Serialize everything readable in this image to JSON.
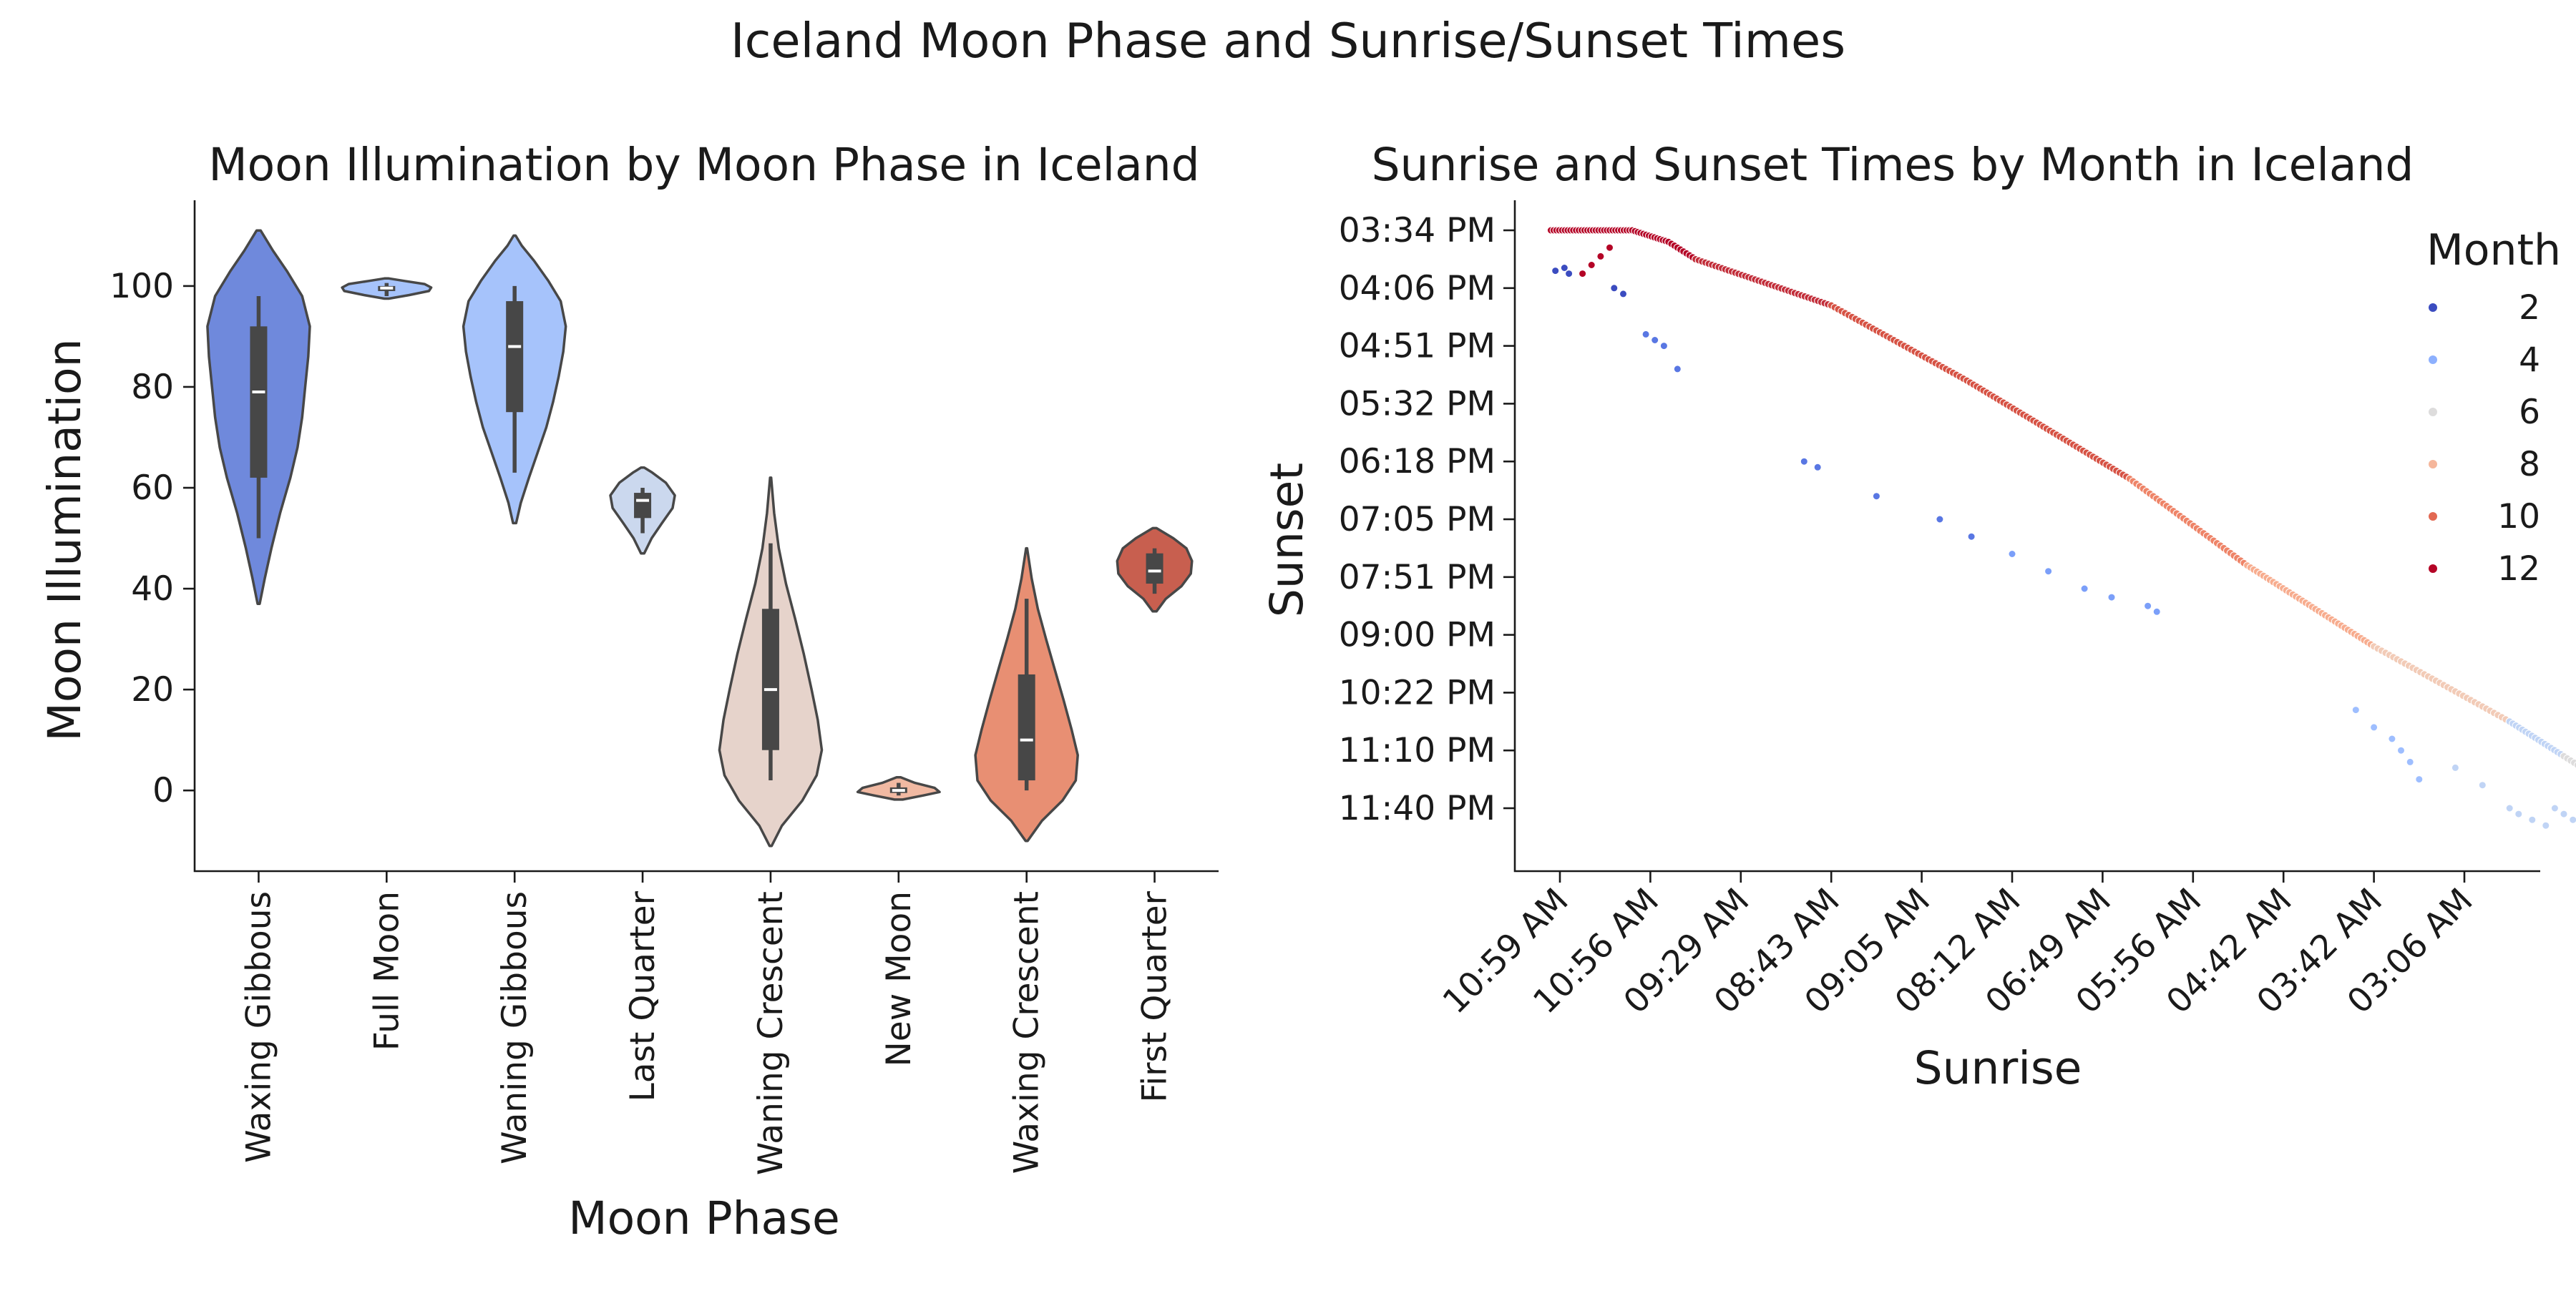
{
  "figure": {
    "title": "Iceland Moon Phase and Sunrise/Sunset Times"
  },
  "chart_data": [
    {
      "type": "violin",
      "title": "Moon Illumination by Moon Phase in Iceland",
      "xlabel": "Moon Phase",
      "ylabel": "Moon Illumination",
      "ylim": [
        -16,
        117
      ],
      "yticks": [
        0,
        20,
        40,
        60,
        80,
        100
      ],
      "categories": [
        "Waxing Gibbous",
        "Full Moon",
        "Waning Gibbous",
        "Last Quarter",
        "Waning Crescent",
        "New Moon",
        "Waxing Crescent",
        "First Quarter"
      ],
      "colors": [
        "#6f89dc",
        "#a6c3fb",
        "#a6c3fb",
        "#cbd8ee",
        "#e6d3cb",
        "#f1b9a2",
        "#e88f73",
        "#c85f4f"
      ],
      "violins": [
        {
          "category": "Waxing Gibbous",
          "min": 50,
          "q1": 62,
          "median": 79,
          "q3": 92,
          "max": 98,
          "kde_min": 37,
          "kde_max": 111,
          "profile": [
            [
              37,
              0.02
            ],
            [
              42,
              0.12
            ],
            [
              48,
              0.25
            ],
            [
              55,
              0.42
            ],
            [
              62,
              0.62
            ],
            [
              68,
              0.76
            ],
            [
              74,
              0.85
            ],
            [
              80,
              0.91
            ],
            [
              86,
              0.97
            ],
            [
              92,
              1.0
            ],
            [
              98,
              0.85
            ],
            [
              103,
              0.55
            ],
            [
              107,
              0.28
            ],
            [
              111,
              0.04
            ]
          ]
        },
        {
          "category": "Full Moon",
          "min": 98,
          "q1": 99,
          "median": 99.6,
          "q3": 100,
          "max": 100.6,
          "kde_min": 97.5,
          "kde_max": 101.5,
          "width_scale": 0.87,
          "profile": [
            [
              97.5,
              0.05
            ],
            [
              98.2,
              0.5
            ],
            [
              99,
              0.95
            ],
            [
              99.7,
              1.0
            ],
            [
              100.4,
              0.85
            ],
            [
              101,
              0.4
            ],
            [
              101.5,
              0.05
            ]
          ]
        },
        {
          "category": "Waning Gibbous",
          "min": 63,
          "q1": 75,
          "median": 88,
          "q3": 97,
          "max": 100,
          "kde_min": 53,
          "kde_max": 110,
          "profile": [
            [
              53,
              0.03
            ],
            [
              57,
              0.12
            ],
            [
              62,
              0.28
            ],
            [
              67,
              0.45
            ],
            [
              72,
              0.62
            ],
            [
              77,
              0.75
            ],
            [
              82,
              0.86
            ],
            [
              87,
              0.95
            ],
            [
              92,
              1.0
            ],
            [
              97,
              0.9
            ],
            [
              101,
              0.66
            ],
            [
              105,
              0.38
            ],
            [
              108,
              0.14
            ],
            [
              110,
              0.02
            ]
          ]
        },
        {
          "category": "Last Quarter",
          "min": 51,
          "q1": 54,
          "median": 57.5,
          "q3": 59,
          "max": 60,
          "kde_min": 47,
          "kde_max": 64,
          "width_scale": 0.63,
          "profile": [
            [
              47,
              0.05
            ],
            [
              50,
              0.28
            ],
            [
              53,
              0.6
            ],
            [
              56,
              0.93
            ],
            [
              58.5,
              1.0
            ],
            [
              61,
              0.72
            ],
            [
              63,
              0.3
            ],
            [
              64,
              0.05
            ]
          ]
        },
        {
          "category": "Waning Crescent",
          "min": 2,
          "q1": 8,
          "median": 20,
          "q3": 36,
          "max": 49,
          "kde_min": -11,
          "kde_max": 62,
          "profile": [
            [
              -11,
              0.02
            ],
            [
              -7,
              0.22
            ],
            [
              -2,
              0.62
            ],
            [
              3,
              0.9
            ],
            [
              8,
              1.0
            ],
            [
              14,
              0.92
            ],
            [
              20,
              0.8
            ],
            [
              27,
              0.65
            ],
            [
              34,
              0.48
            ],
            [
              41,
              0.3
            ],
            [
              48,
              0.16
            ],
            [
              55,
              0.07
            ],
            [
              62,
              0.01
            ]
          ]
        },
        {
          "category": "New Moon",
          "min": -1,
          "q1": -0.5,
          "median": 0,
          "q3": 0.6,
          "max": 1.5,
          "kde_min": -1.8,
          "kde_max": 2.6,
          "width_scale": 0.8,
          "profile": [
            [
              -1.8,
              0.1
            ],
            [
              -1,
              0.6
            ],
            [
              -0.3,
              1.0
            ],
            [
              0.5,
              0.88
            ],
            [
              1.5,
              0.4
            ],
            [
              2.6,
              0.05
            ]
          ]
        },
        {
          "category": "Waxing Crescent",
          "min": 0,
          "q1": 2,
          "median": 10,
          "q3": 23,
          "max": 38,
          "kde_min": -10,
          "kde_max": 48,
          "profile": [
            [
              -10,
              0.02
            ],
            [
              -6,
              0.3
            ],
            [
              -2,
              0.7
            ],
            [
              2,
              0.96
            ],
            [
              7,
              1.0
            ],
            [
              12,
              0.88
            ],
            [
              18,
              0.72
            ],
            [
              24,
              0.55
            ],
            [
              30,
              0.38
            ],
            [
              36,
              0.22
            ],
            [
              42,
              0.1
            ],
            [
              48,
              0.01
            ]
          ]
        },
        {
          "category": "First Quarter",
          "min": 39,
          "q1": 41,
          "median": 43.5,
          "q3": 47,
          "max": 48,
          "kde_min": 35.5,
          "kde_max": 52,
          "width_scale": 0.73,
          "profile": [
            [
              35.5,
              0.05
            ],
            [
              38,
              0.3
            ],
            [
              40.5,
              0.72
            ],
            [
              43,
              0.97
            ],
            [
              45.5,
              1.0
            ],
            [
              48,
              0.85
            ],
            [
              50,
              0.5
            ],
            [
              52,
              0.05
            ]
          ]
        }
      ]
    },
    {
      "type": "scatter",
      "title": "Sunrise and Sunset Times by Month in Iceland",
      "xlabel": "Sunrise",
      "ylabel": "Sunset",
      "x_tick_labels": [
        "10:59 AM",
        "10:56 AM",
        "09:29 AM",
        "08:43 AM",
        "09:05 AM",
        "08:12 AM",
        "06:49 AM",
        "05:56 AM",
        "04:42 AM",
        "03:42 AM",
        "03:06 AM"
      ],
      "y_tick_labels": [
        "03:34 PM",
        "04:06 PM",
        "04:51 PM",
        "05:32 PM",
        "06:18 PM",
        "07:05 PM",
        "07:51 PM",
        "09:00 PM",
        "10:22 PM",
        "11:10 PM",
        "11:40 PM"
      ],
      "legend": {
        "title": "Month",
        "entries": [
          {
            "label": "2",
            "color": "#3b4cc0"
          },
          {
            "label": "4",
            "color": "#8db0fe"
          },
          {
            "label": "6",
            "color": "#dddcdc"
          },
          {
            "label": "8",
            "color": "#f5b69b"
          },
          {
            "label": "10",
            "color": "#e26952"
          },
          {
            "label": "12",
            "color": "#b40426"
          }
        ],
        "placement": "top-right"
      },
      "hue_colors": {
        "1": "#3b4cc0",
        "2": "#5977e3",
        "3": "#7b9ff9",
        "4": "#9ebeff",
        "5": "#c0d4f5",
        "6": "#dddcdc",
        "7": "#f2cbb7",
        "8": "#f7ac8e",
        "9": "#ee8468",
        "10": "#d65244",
        "11": "#c22e3a",
        "12": "#b40426"
      },
      "main_trend": [
        {
          "month": 12,
          "from": [
            -0.1,
            0.0
          ],
          "to": [
            0.8,
            0.0
          ],
          "n": 30
        },
        {
          "month": 12,
          "from": [
            0.8,
            0.0
          ],
          "to": [
            1.2,
            0.2
          ],
          "n": 14
        },
        {
          "month": 12,
          "from": [
            1.2,
            0.2
          ],
          "to": [
            1.5,
            0.5
          ],
          "n": 10
        },
        {
          "month": 11,
          "from": [
            1.5,
            0.5
          ],
          "to": [
            3.0,
            1.3
          ],
          "n": 42
        },
        {
          "month": 10,
          "from": [
            3.0,
            1.3
          ],
          "to": [
            4.5,
            2.6
          ],
          "n": 40
        },
        {
          "month": 10,
          "from": [
            4.5,
            2.6
          ],
          "to": [
            6.3,
            4.3
          ],
          "n": 50
        },
        {
          "month": 9,
          "from": [
            6.3,
            4.3
          ],
          "to": [
            7.6,
            5.8
          ],
          "n": 36
        },
        {
          "month": 8,
          "from": [
            7.6,
            5.8
          ],
          "to": [
            9.0,
            7.2
          ],
          "n": 40
        },
        {
          "month": 7,
          "from": [
            9.0,
            7.2
          ],
          "to": [
            10.5,
            8.5
          ],
          "n": 36
        },
        {
          "month": 5,
          "from": [
            10.5,
            8.5
          ],
          "to": [
            11.1,
            9.1
          ],
          "n": 18
        },
        {
          "month": 6,
          "from": [
            11.1,
            9.1
          ],
          "to": [
            11.9,
            9.9
          ],
          "n": 22
        }
      ],
      "outliers": [
        {
          "month": 12,
          "x": 0.25,
          "y": 0.75
        },
        {
          "month": 12,
          "x": 0.35,
          "y": 0.6
        },
        {
          "month": 12,
          "x": 0.45,
          "y": 0.45
        },
        {
          "month": 12,
          "x": 0.55,
          "y": 0.3
        },
        {
          "month": 1,
          "x": -0.05,
          "y": 0.7
        },
        {
          "month": 1,
          "x": 0.05,
          "y": 0.65
        },
        {
          "month": 1,
          "x": 0.1,
          "y": 0.75
        },
        {
          "month": 1,
          "x": 0.6,
          "y": 1.0
        },
        {
          "month": 1,
          "x": 0.7,
          "y": 1.1
        },
        {
          "month": 2,
          "x": 0.95,
          "y": 1.8
        },
        {
          "month": 2,
          "x": 1.05,
          "y": 1.9
        },
        {
          "month": 2,
          "x": 1.15,
          "y": 2.0
        },
        {
          "month": 2,
          "x": 1.3,
          "y": 2.4
        },
        {
          "month": 2,
          "x": 2.7,
          "y": 4.0
        },
        {
          "month": 2,
          "x": 2.85,
          "y": 4.1
        },
        {
          "month": 2,
          "x": 3.5,
          "y": 4.6
        },
        {
          "month": 2,
          "x": 4.2,
          "y": 5.0
        },
        {
          "month": 2,
          "x": 4.55,
          "y": 5.3
        },
        {
          "month": 3,
          "x": 5.0,
          "y": 5.6
        },
        {
          "month": 3,
          "x": 5.4,
          "y": 5.9
        },
        {
          "month": 3,
          "x": 5.8,
          "y": 6.2
        },
        {
          "month": 3,
          "x": 6.1,
          "y": 6.35
        },
        {
          "month": 3,
          "x": 6.5,
          "y": 6.5
        },
        {
          "month": 3,
          "x": 6.6,
          "y": 6.6
        },
        {
          "month": 4,
          "x": 8.8,
          "y": 8.3
        },
        {
          "month": 4,
          "x": 9.0,
          "y": 8.6
        },
        {
          "month": 4,
          "x": 9.2,
          "y": 8.8
        },
        {
          "month": 4,
          "x": 9.3,
          "y": 9.0
        },
        {
          "month": 4,
          "x": 9.4,
          "y": 9.2
        },
        {
          "month": 4,
          "x": 9.5,
          "y": 9.5
        },
        {
          "month": 5,
          "x": 9.9,
          "y": 9.3
        },
        {
          "month": 5,
          "x": 10.2,
          "y": 9.6
        },
        {
          "month": 5,
          "x": 10.5,
          "y": 10.0
        },
        {
          "month": 5,
          "x": 10.6,
          "y": 10.1
        },
        {
          "month": 5,
          "x": 10.75,
          "y": 10.2
        },
        {
          "month": 5,
          "x": 10.9,
          "y": 10.3
        },
        {
          "month": 5,
          "x": 11.0,
          "y": 10.0
        },
        {
          "month": 5,
          "x": 11.1,
          "y": 10.1
        },
        {
          "month": 5,
          "x": 11.2,
          "y": 10.2
        },
        {
          "month": 5,
          "x": 11.3,
          "y": 10.5
        },
        {
          "month": 5,
          "x": 11.4,
          "y": 10.4
        },
        {
          "month": 5,
          "x": 11.55,
          "y": 10.2
        },
        {
          "month": 5,
          "x": 11.8,
          "y": 10.4
        },
        {
          "month": 5,
          "x": 11.9,
          "y": 10.6
        }
      ]
    }
  ]
}
